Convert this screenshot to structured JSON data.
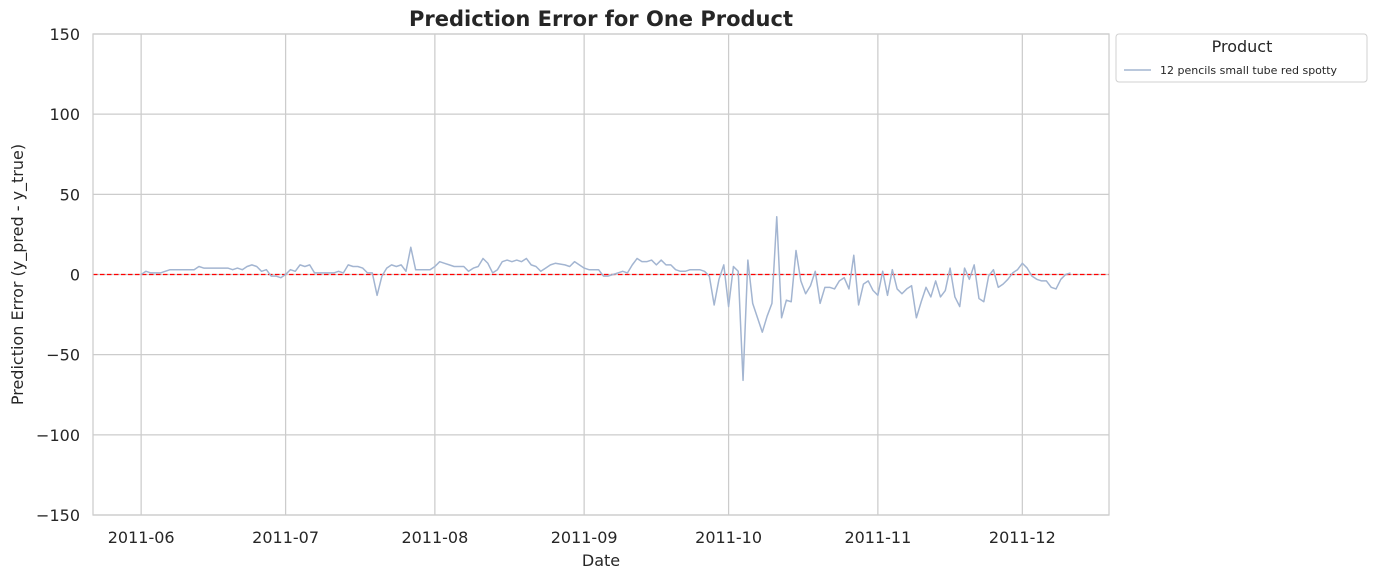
{
  "chart_data": {
    "type": "line",
    "title": "Prediction Error for One Product",
    "xlabel": "Date",
    "ylabel": "Prediction Error (y_pred - y_true)",
    "ylim": [
      -150,
      150
    ],
    "xlim": [
      "2011-05-22",
      "2011-12-19"
    ],
    "y_ticks": [
      150,
      100,
      50,
      0,
      -50,
      -100,
      -150
    ],
    "y_tick_labels": [
      "150",
      "100",
      "50",
      "0",
      "−50",
      "−100",
      "−150"
    ],
    "x_ticks": [
      "2011-06-01",
      "2011-07-01",
      "2011-08-01",
      "2011-09-01",
      "2011-10-01",
      "2011-11-01",
      "2011-12-01"
    ],
    "x_tick_labels": [
      "2011-06",
      "2011-07",
      "2011-08",
      "2011-09",
      "2011-10",
      "2011-11",
      "2011-12"
    ],
    "grid": true,
    "reference_line": {
      "y": 0,
      "color": "#ff0000",
      "style": "dashed"
    },
    "legend": {
      "title": "Product",
      "placement": "outside top-right"
    },
    "series": [
      {
        "name": "12 pencils small tube red spotty",
        "color": "#a3b5d1",
        "points": [
          [
            "2011-06-01",
            0
          ],
          [
            "2011-06-02",
            2
          ],
          [
            "2011-06-03",
            1
          ],
          [
            "2011-06-05",
            1
          ],
          [
            "2011-06-06",
            2
          ],
          [
            "2011-06-07",
            3
          ],
          [
            "2011-06-08",
            3
          ],
          [
            "2011-06-09",
            3
          ],
          [
            "2011-06-10",
            3
          ],
          [
            "2011-06-12",
            3
          ],
          [
            "2011-06-13",
            5
          ],
          [
            "2011-06-14",
            4
          ],
          [
            "2011-06-15",
            4
          ],
          [
            "2011-06-16",
            4
          ],
          [
            "2011-06-17",
            4
          ],
          [
            "2011-06-19",
            4
          ],
          [
            "2011-06-20",
            3
          ],
          [
            "2011-06-21",
            4
          ],
          [
            "2011-06-22",
            3
          ],
          [
            "2011-06-23",
            5
          ],
          [
            "2011-06-24",
            6
          ],
          [
            "2011-06-25",
            5
          ],
          [
            "2011-06-26",
            2
          ],
          [
            "2011-06-27",
            3
          ],
          [
            "2011-06-28",
            -1
          ],
          [
            "2011-06-29",
            -1
          ],
          [
            "2011-06-30",
            -2
          ],
          [
            "2011-07-01",
            0
          ],
          [
            "2011-07-02",
            3
          ],
          [
            "2011-07-03",
            2
          ],
          [
            "2011-07-04",
            6
          ],
          [
            "2011-07-05",
            5
          ],
          [
            "2011-07-06",
            6
          ],
          [
            "2011-07-07",
            1
          ],
          [
            "2011-07-08",
            1
          ],
          [
            "2011-07-10",
            1
          ],
          [
            "2011-07-11",
            1
          ],
          [
            "2011-07-12",
            2
          ],
          [
            "2011-07-13",
            1
          ],
          [
            "2011-07-14",
            6
          ],
          [
            "2011-07-15",
            5
          ],
          [
            "2011-07-16",
            5
          ],
          [
            "2011-07-17",
            4
          ],
          [
            "2011-07-18",
            1
          ],
          [
            "2011-07-19",
            1
          ],
          [
            "2011-07-20",
            -13
          ],
          [
            "2011-07-21",
            -1
          ],
          [
            "2011-07-22",
            4
          ],
          [
            "2011-07-23",
            6
          ],
          [
            "2011-07-24",
            5
          ],
          [
            "2011-07-25",
            6
          ],
          [
            "2011-07-26",
            2
          ],
          [
            "2011-07-27",
            17
          ],
          [
            "2011-07-28",
            3
          ],
          [
            "2011-07-29",
            3
          ],
          [
            "2011-07-30",
            3
          ],
          [
            "2011-07-31",
            3
          ],
          [
            "2011-08-01",
            5
          ],
          [
            "2011-08-02",
            8
          ],
          [
            "2011-08-03",
            7
          ],
          [
            "2011-08-04",
            6
          ],
          [
            "2011-08-05",
            5
          ],
          [
            "2011-08-06",
            5
          ],
          [
            "2011-08-07",
            5
          ],
          [
            "2011-08-08",
            2
          ],
          [
            "2011-08-09",
            4
          ],
          [
            "2011-08-10",
            5
          ],
          [
            "2011-08-11",
            10
          ],
          [
            "2011-08-12",
            7
          ],
          [
            "2011-08-13",
            1
          ],
          [
            "2011-08-14",
            3
          ],
          [
            "2011-08-15",
            8
          ],
          [
            "2011-08-16",
            9
          ],
          [
            "2011-08-17",
            8
          ],
          [
            "2011-08-18",
            9
          ],
          [
            "2011-08-19",
            8
          ],
          [
            "2011-08-20",
            10
          ],
          [
            "2011-08-21",
            6
          ],
          [
            "2011-08-22",
            5
          ],
          [
            "2011-08-23",
            2
          ],
          [
            "2011-08-24",
            4
          ],
          [
            "2011-08-25",
            6
          ],
          [
            "2011-08-26",
            7
          ],
          [
            "2011-08-28",
            6
          ],
          [
            "2011-08-29",
            5
          ],
          [
            "2011-08-30",
            8
          ],
          [
            "2011-08-31",
            6
          ],
          [
            "2011-09-01",
            4
          ],
          [
            "2011-09-02",
            3
          ],
          [
            "2011-09-03",
            3
          ],
          [
            "2011-09-04",
            3
          ],
          [
            "2011-09-05",
            -1
          ],
          [
            "2011-09-06",
            -1
          ],
          [
            "2011-09-07",
            0
          ],
          [
            "2011-09-08",
            1
          ],
          [
            "2011-09-09",
            2
          ],
          [
            "2011-09-10",
            1
          ],
          [
            "2011-09-11",
            6
          ],
          [
            "2011-09-12",
            10
          ],
          [
            "2011-09-13",
            8
          ],
          [
            "2011-09-14",
            8
          ],
          [
            "2011-09-15",
            9
          ],
          [
            "2011-09-16",
            6
          ],
          [
            "2011-09-17",
            9
          ],
          [
            "2011-09-18",
            6
          ],
          [
            "2011-09-19",
            6
          ],
          [
            "2011-09-20",
            3
          ],
          [
            "2011-09-21",
            2
          ],
          [
            "2011-09-22",
            2
          ],
          [
            "2011-09-23",
            3
          ],
          [
            "2011-09-25",
            3
          ],
          [
            "2011-09-26",
            2
          ],
          [
            "2011-09-27",
            -1
          ],
          [
            "2011-09-28",
            -19
          ],
          [
            "2011-09-29",
            -3
          ],
          [
            "2011-09-30",
            6
          ],
          [
            "2011-10-01",
            -20
          ],
          [
            "2011-10-02",
            5
          ],
          [
            "2011-10-03",
            2
          ],
          [
            "2011-10-04",
            -66
          ],
          [
            "2011-10-05",
            9
          ],
          [
            "2011-10-06",
            -18
          ],
          [
            "2011-10-07",
            -27
          ],
          [
            "2011-10-08",
            -36
          ],
          [
            "2011-10-09",
            -26
          ],
          [
            "2011-10-10",
            -18
          ],
          [
            "2011-10-11",
            36
          ],
          [
            "2011-10-12",
            -27
          ],
          [
            "2011-10-13",
            -16
          ],
          [
            "2011-10-14",
            -17
          ],
          [
            "2011-10-15",
            15
          ],
          [
            "2011-10-16",
            -4
          ],
          [
            "2011-10-17",
            -12
          ],
          [
            "2011-10-18",
            -7
          ],
          [
            "2011-10-19",
            2
          ],
          [
            "2011-10-20",
            -18
          ],
          [
            "2011-10-21",
            -8
          ],
          [
            "2011-10-22",
            -8
          ],
          [
            "2011-10-23",
            -9
          ],
          [
            "2011-10-24",
            -4
          ],
          [
            "2011-10-25",
            -2
          ],
          [
            "2011-10-26",
            -9
          ],
          [
            "2011-10-27",
            12
          ],
          [
            "2011-10-28",
            -19
          ],
          [
            "2011-10-29",
            -6
          ],
          [
            "2011-10-30",
            -4
          ],
          [
            "2011-10-31",
            -10
          ],
          [
            "2011-11-01",
            -13
          ],
          [
            "2011-11-02",
            2
          ],
          [
            "2011-11-03",
            -13
          ],
          [
            "2011-11-04",
            3
          ],
          [
            "2011-11-05",
            -9
          ],
          [
            "2011-11-06",
            -12
          ],
          [
            "2011-11-07",
            -9
          ],
          [
            "2011-11-08",
            -7
          ],
          [
            "2011-11-09",
            -27
          ],
          [
            "2011-11-10",
            -17
          ],
          [
            "2011-11-11",
            -8
          ],
          [
            "2011-11-12",
            -14
          ],
          [
            "2011-11-13",
            -4
          ],
          [
            "2011-11-14",
            -14
          ],
          [
            "2011-11-15",
            -10
          ],
          [
            "2011-11-16",
            4
          ],
          [
            "2011-11-17",
            -14
          ],
          [
            "2011-11-18",
            -20
          ],
          [
            "2011-11-19",
            4
          ],
          [
            "2011-11-20",
            -3
          ],
          [
            "2011-11-21",
            6
          ],
          [
            "2011-11-22",
            -15
          ],
          [
            "2011-11-23",
            -17
          ],
          [
            "2011-11-24",
            -1
          ],
          [
            "2011-11-25",
            3
          ],
          [
            "2011-11-26",
            -8
          ],
          [
            "2011-11-27",
            -6
          ],
          [
            "2011-11-28",
            -3
          ],
          [
            "2011-11-29",
            1
          ],
          [
            "2011-11-30",
            3
          ],
          [
            "2011-12-01",
            7
          ],
          [
            "2011-12-02",
            4
          ],
          [
            "2011-12-03",
            -1
          ],
          [
            "2011-12-04",
            -3
          ],
          [
            "2011-12-05",
            -4
          ],
          [
            "2011-12-06",
            -4
          ],
          [
            "2011-12-07",
            -8
          ],
          [
            "2011-12-08",
            -9
          ],
          [
            "2011-12-09",
            -3
          ],
          [
            "2011-12-10",
            0
          ],
          [
            "2011-12-11",
            1
          ]
        ]
      }
    ]
  }
}
